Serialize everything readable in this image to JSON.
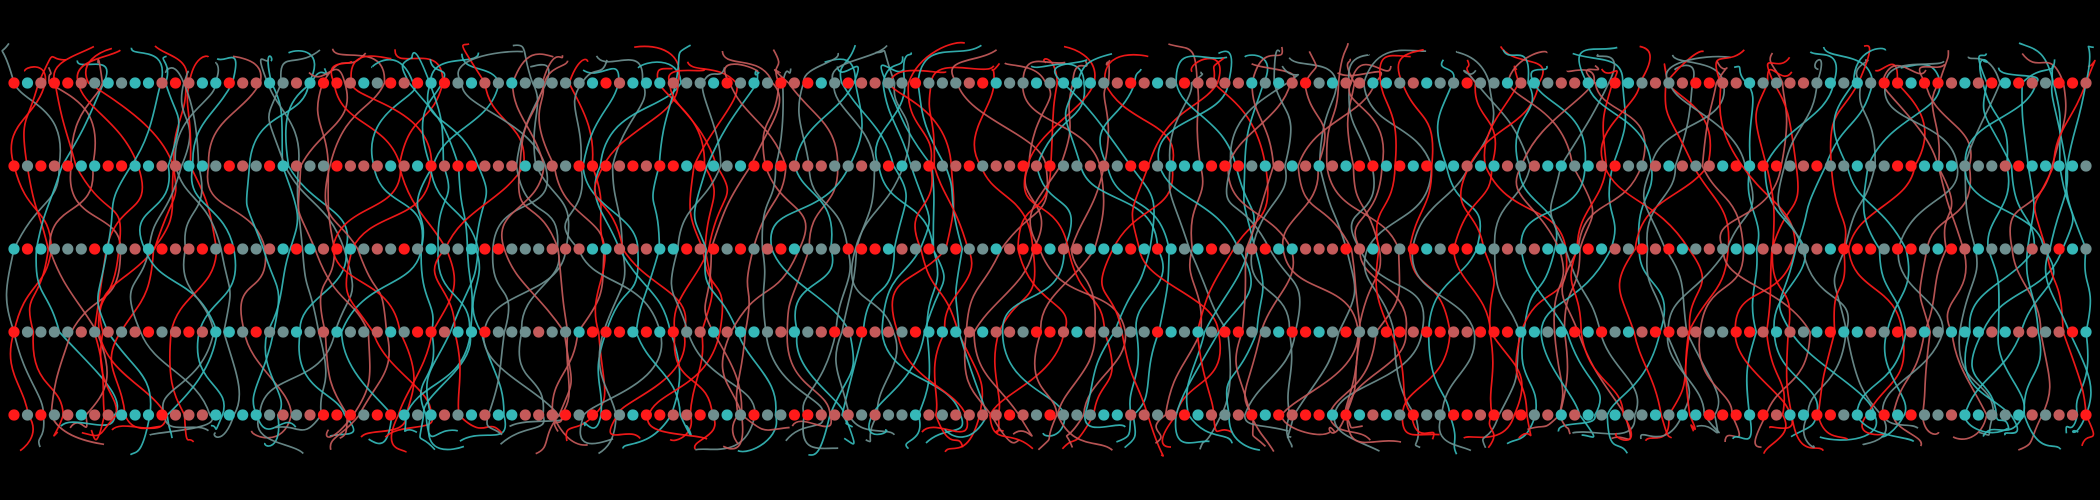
{
  "art": {
    "palette": [
      "#ff1a1a",
      "#c45a5a",
      "#6e8f8f",
      "#35b8b8"
    ],
    "background": "#000000",
    "row_count": 5,
    "column_count": 155,
    "strand_count": 155,
    "style": "sinusoidal strands connecting colored nodes on parallel rows"
  }
}
